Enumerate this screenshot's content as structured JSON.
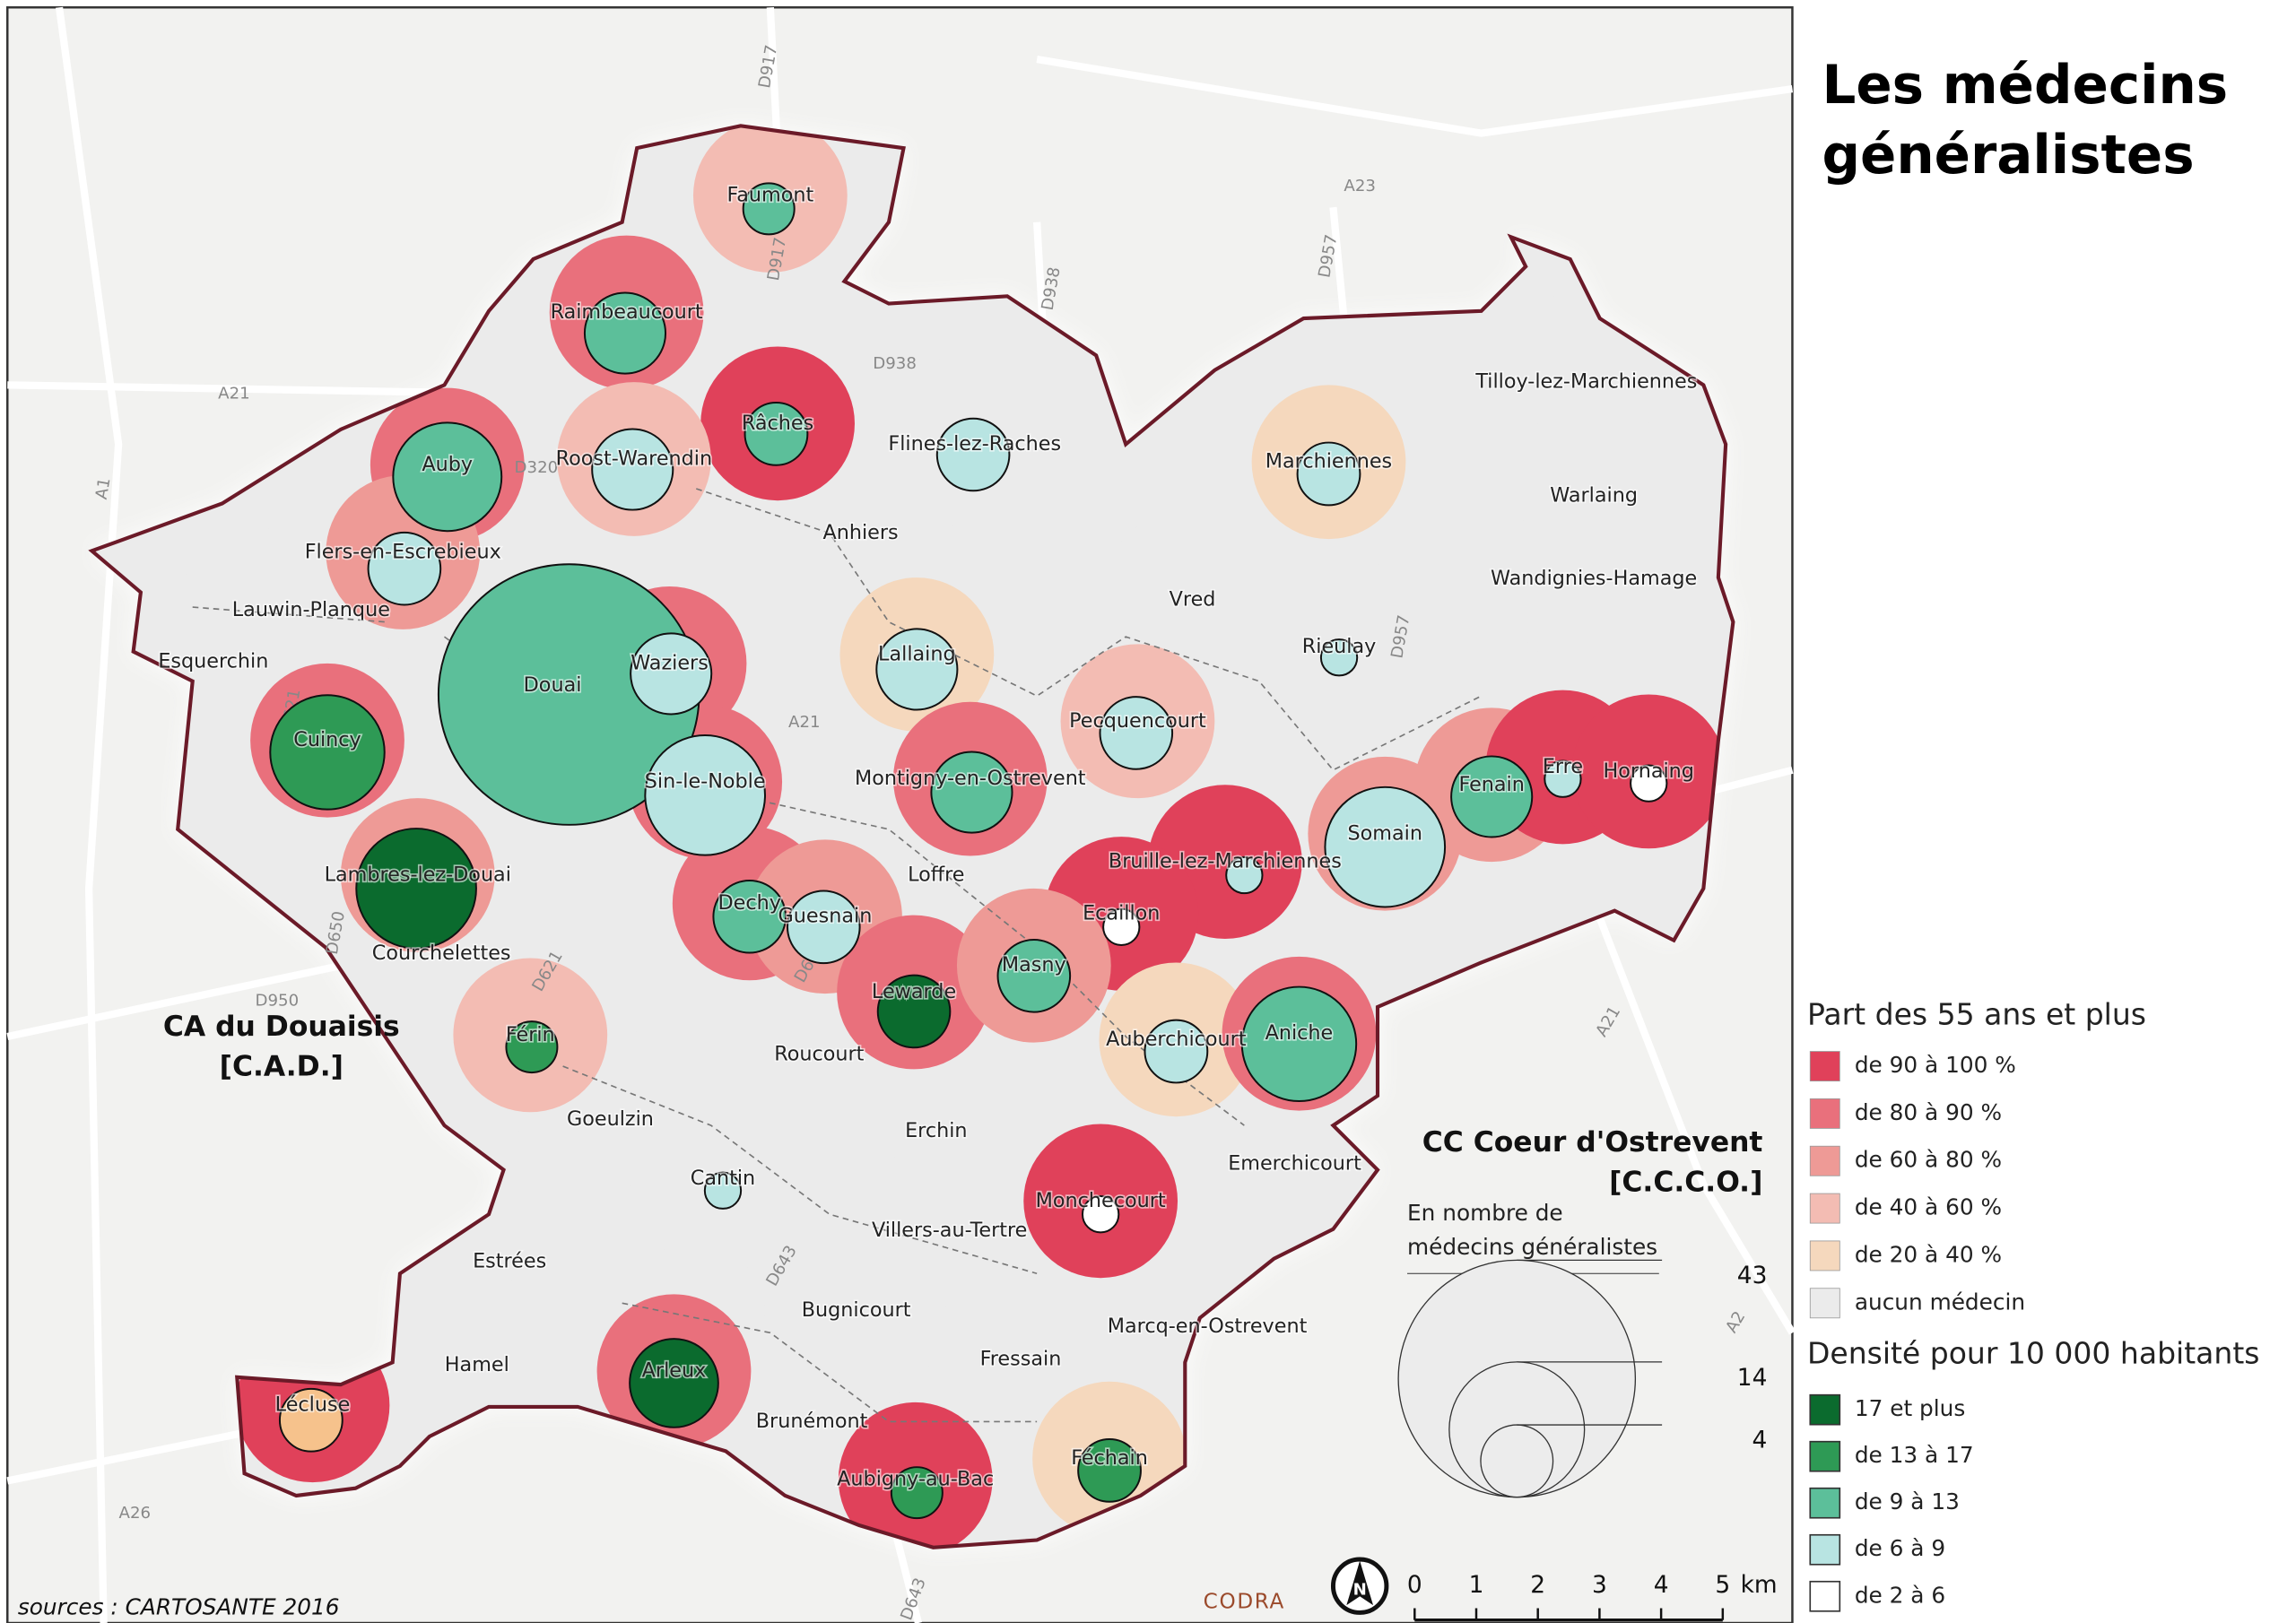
{
  "title_lines": [
    "Les médecins",
    "généralistes"
  ],
  "legend_age": {
    "title": "Part des 55 ans et plus",
    "items": [
      {
        "label": "de 90 à 100 %",
        "color": "#e0415a"
      },
      {
        "label": "de 80 à 90 %",
        "color": "#e9707c"
      },
      {
        "label": "de 60 à 80 %",
        "color": "#ee9a96"
      },
      {
        "label": "de 40 à 60 %",
        "color": "#f3bcb3"
      },
      {
        "label": "de 20 à 40 %",
        "color": "#f5d8bd"
      },
      {
        "label": "aucun médecin",
        "color": "#ebebeb"
      }
    ]
  },
  "legend_density": {
    "title": "Densité pour 10 000 habitants",
    "items": [
      {
        "label": "17 et plus",
        "color": "#0b6b2e"
      },
      {
        "label": "de 13 à 17",
        "color": "#2e9a55"
      },
      {
        "label": "de 9 à 13",
        "color": "#5cbf9a"
      },
      {
        "label": "de 6 à 9",
        "color": "#b8e4e2"
      },
      {
        "label": "de 2 à 6",
        "color": "#ffffff"
      }
    ]
  },
  "legend_size": {
    "title_lines": [
      "En nombre de",
      "médecins généralistes"
    ],
    "values": [
      43,
      14,
      4
    ]
  },
  "territories": [
    {
      "lines": [
        "CA du Douaisis",
        "[C.A.D.]"
      ]
    },
    {
      "lines": [
        "CC Coeur d'Ostrevent",
        "[C.C.C.O.]"
      ]
    }
  ],
  "communes": [
    {
      "name": "Faumont",
      "area_color": "#f3bcb3",
      "doctors": 2,
      "circle_color": "#5cbf9a"
    },
    {
      "name": "Raimbeaucourt",
      "area_color": "#e9707c",
      "doctors": 5,
      "circle_color": "#5cbf9a"
    },
    {
      "name": "Râches",
      "area_color": "#e0415a",
      "doctors": 3,
      "circle_color": "#5cbf9a"
    },
    {
      "name": "Auby",
      "area_color": "#e9707c",
      "doctors": 9,
      "circle_color": "#5cbf9a"
    },
    {
      "name": "Roost-Warendin",
      "area_color": "#f3bcb3",
      "doctors": 5,
      "circle_color": "#b8e4e2"
    },
    {
      "name": "Flers-en-Escrebieux",
      "area_color": "#ee9a96",
      "doctors": 4,
      "circle_color": "#b8e4e2"
    },
    {
      "name": "Lauwin-Planque",
      "area_color": "#ebebeb"
    },
    {
      "name": "Esquerchin",
      "area_color": "#ebebeb"
    },
    {
      "name": "Douai",
      "area_color": "#ee9a96",
      "doctors": 52,
      "circle_color": "#5cbf9a"
    },
    {
      "name": "Waziers",
      "area_color": "#e9707c",
      "doctors": 5,
      "circle_color": "#b8e4e2"
    },
    {
      "name": "Cuincy",
      "area_color": "#e9707c",
      "doctors": 10,
      "circle_color": "#2e9a55"
    },
    {
      "name": "Sin-le-Noble",
      "area_color": "#e9707c",
      "doctors": 11,
      "circle_color": "#b8e4e2"
    },
    {
      "name": "Lambres-lez-Douai",
      "area_color": "#ee9a96",
      "doctors": 11,
      "circle_color": "#0b6b2e"
    },
    {
      "name": "Courchelettes",
      "area_color": "#ebebeb"
    },
    {
      "name": "Flines-lez-Raches",
      "area_color": "#ebebeb",
      "doctors": 4,
      "circle_color": "#b8e4e2"
    },
    {
      "name": "Anhiers",
      "area_color": "#ebebeb"
    },
    {
      "name": "Marchiennes",
      "area_color": "#f5d8bd",
      "doctors": 3,
      "circle_color": "#b8e4e2"
    },
    {
      "name": "Tilloy-lez-Marchiennes",
      "area_color": "#ebebeb"
    },
    {
      "name": "Warlaing",
      "area_color": "#ebebeb"
    },
    {
      "name": "Wandignies-Hamage",
      "area_color": "#ebebeb"
    },
    {
      "name": "Vred",
      "area_color": "#ebebeb"
    },
    {
      "name": "Rieulay",
      "area_color": "#ebebeb",
      "doctors": 1,
      "circle_color": "#b8e4e2"
    },
    {
      "name": "Lallaing",
      "area_color": "#f5d8bd",
      "doctors": 5,
      "circle_color": "#b8e4e2"
    },
    {
      "name": "Pecquencourt",
      "area_color": "#f3bcb3",
      "doctors": 4,
      "circle_color": "#b8e4e2"
    },
    {
      "name": "Montigny-en-Ostrevent",
      "area_color": "#e9707c",
      "doctors": 5,
      "circle_color": "#5cbf9a"
    },
    {
      "name": "Fenain",
      "area_color": "#ee9a96",
      "doctors": 5,
      "circle_color": "#5cbf9a"
    },
    {
      "name": "Erre",
      "area_color": "#e0415a",
      "doctors": 1,
      "circle_color": "#b8e4e2"
    },
    {
      "name": "Hornaing",
      "area_color": "#e0415a",
      "doctors": 1,
      "circle_color": "#ffffff"
    },
    {
      "name": "Somain",
      "area_color": "#ee9a96",
      "doctors": 11,
      "circle_color": "#b8e4e2"
    },
    {
      "name": "Bruille-lez-Marchiennes",
      "area_color": "#e0415a",
      "doctors": 1,
      "circle_color": "#b8e4e2"
    },
    {
      "name": "Loffre",
      "area_color": "#ebebeb"
    },
    {
      "name": "Dechy",
      "area_color": "#e9707c",
      "doctors": 4,
      "circle_color": "#5cbf9a"
    },
    {
      "name": "Guesnain",
      "area_color": "#ee9a96",
      "doctors": 4,
      "circle_color": "#b8e4e2"
    },
    {
      "name": "Ecaillon",
      "area_color": "#e0415a",
      "doctors": 1,
      "circle_color": "#ffffff"
    },
    {
      "name": "Lewarde",
      "area_color": "#e9707c",
      "doctors": 4,
      "circle_color": "#0b6b2e"
    },
    {
      "name": "Masny",
      "area_color": "#ee9a96",
      "doctors": 4,
      "circle_color": "#5cbf9a"
    },
    {
      "name": "Férin",
      "area_color": "#f3bcb3",
      "doctors": 2,
      "circle_color": "#2e9a55"
    },
    {
      "name": "Roucourt",
      "area_color": "#ebebeb"
    },
    {
      "name": "Auberchicourt",
      "area_color": "#f5d8bd",
      "doctors": 3,
      "circle_color": "#b8e4e2"
    },
    {
      "name": "Aniche",
      "area_color": "#e9707c",
      "doctors": 10,
      "circle_color": "#5cbf9a"
    },
    {
      "name": "Goeulzin",
      "area_color": "#ebebeb"
    },
    {
      "name": "Erchin",
      "area_color": "#ebebeb"
    },
    {
      "name": "Emerchicourt",
      "area_color": "#ebebeb"
    },
    {
      "name": "Cantin",
      "area_color": "#ebebeb",
      "doctors": 1,
      "circle_color": "#b8e4e2"
    },
    {
      "name": "Monchecourt",
      "area_color": "#e0415a",
      "doctors": 1,
      "circle_color": "#ffffff"
    },
    {
      "name": "Villers-au-Tertre",
      "area_color": "#ebebeb"
    },
    {
      "name": "Estrées",
      "area_color": "#ebebeb"
    },
    {
      "name": "Bugnicourt",
      "area_color": "#ebebeb"
    },
    {
      "name": "Marcq-en-Ostrevent",
      "area_color": "#ebebeb"
    },
    {
      "name": "Fressain",
      "area_color": "#ebebeb"
    },
    {
      "name": "Hamel",
      "area_color": "#ebebeb"
    },
    {
      "name": "Arleux",
      "area_color": "#e9707c",
      "doctors": 6,
      "circle_color": "#0b6b2e"
    },
    {
      "name": "Lécluse",
      "area_color": "#e0415a",
      "doctors": 3,
      "circle_color": "#f6c28c"
    },
    {
      "name": "Brunémont",
      "area_color": "#ebebeb"
    },
    {
      "name": "Aubigny-au-Bac",
      "area_color": "#e0415a",
      "doctors": 2,
      "circle_color": "#2e9a55"
    },
    {
      "name": "Féchain",
      "area_color": "#f5d8bd",
      "doctors": 3,
      "circle_color": "#2e9a55"
    }
  ],
  "roads": [
    "D917",
    "A23",
    "D957",
    "D938",
    "D938",
    "A21",
    "A1",
    "D320",
    "D621",
    "A21",
    "D650",
    "D950",
    "D621",
    "D643",
    "D643",
    "D643",
    "A26",
    "A21",
    "A2",
    "D957",
    "D917"
  ],
  "scale": {
    "ticks": [
      0,
      1,
      2,
      3,
      4,
      5
    ],
    "unit": "km"
  },
  "north": "N",
  "credit": "CODRA",
  "sources": "sources : CARTOSANTE 2016"
}
